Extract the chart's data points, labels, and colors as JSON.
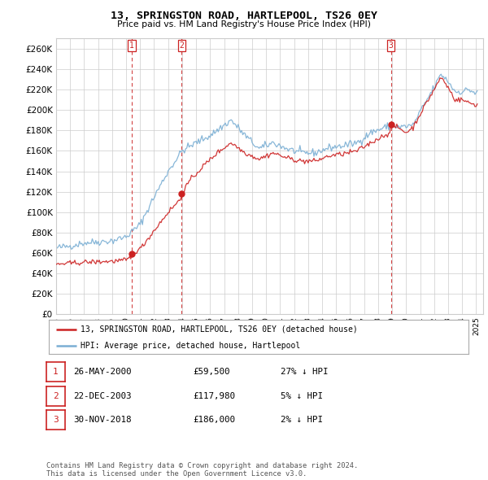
{
  "title": "13, SPRINGSTON ROAD, HARTLEPOOL, TS26 0EY",
  "subtitle": "Price paid vs. HM Land Registry's House Price Index (HPI)",
  "ylim": [
    0,
    270000
  ],
  "yticks": [
    0,
    20000,
    40000,
    60000,
    80000,
    100000,
    120000,
    140000,
    160000,
    180000,
    200000,
    220000,
    240000,
    260000
  ],
  "sale_dates": [
    "2000-05-26",
    "2003-12-22",
    "2018-11-30"
  ],
  "sale_prices": [
    59500,
    117980,
    186000
  ],
  "sale_labels": [
    "1",
    "2",
    "3"
  ],
  "hpi_color": "#7bafd4",
  "price_color": "#cc2222",
  "vline_color": "#cc2222",
  "background_color": "#ffffff",
  "grid_color": "#cccccc",
  "legend_label_price": "13, SPRINGSTON ROAD, HARTLEPOOL, TS26 0EY (detached house)",
  "legend_label_hpi": "HPI: Average price, detached house, Hartlepool",
  "table_data": [
    [
      "1",
      "26-MAY-2000",
      "£59,500",
      "27% ↓ HPI"
    ],
    [
      "2",
      "22-DEC-2003",
      "£117,980",
      "5% ↓ HPI"
    ],
    [
      "3",
      "30-NOV-2018",
      "£186,000",
      "2% ↓ HPI"
    ]
  ],
  "footnote": "Contains HM Land Registry data © Crown copyright and database right 2024.\nThis data is licensed under the Open Government Licence v3.0."
}
